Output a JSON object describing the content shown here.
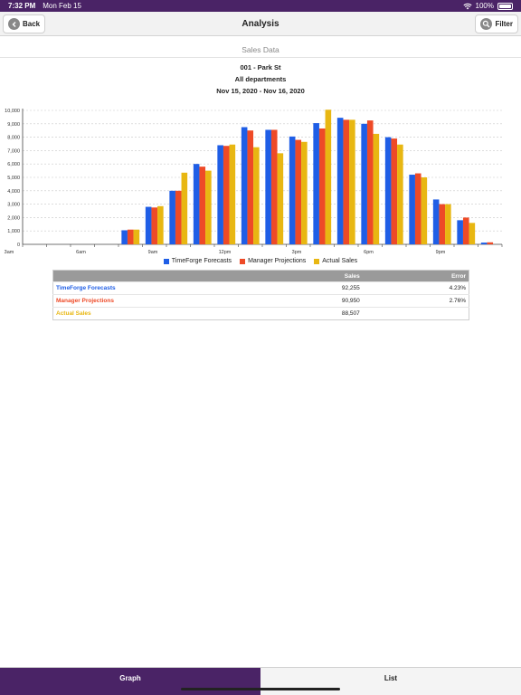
{
  "status": {
    "time": "7:32 PM",
    "date": "Mon Feb 15",
    "battery": "100%"
  },
  "nav": {
    "back_label": "Back",
    "title": "Analysis",
    "filter_label": "Filter"
  },
  "section_title": "Sales Data",
  "info": {
    "store": "001 - Park St",
    "department": "All departments",
    "range": "Nov 15, 2020 - Nov 16, 2020"
  },
  "colors": {
    "forecast": "#1f5ee6",
    "manager": "#ee4a27",
    "actual": "#e8b712",
    "brand": "#4a2366"
  },
  "chart_data": {
    "type": "bar",
    "categories": [
      "3am",
      "4am",
      "5am",
      "6am",
      "7am",
      "8am",
      "9am",
      "10am",
      "11am",
      "12pm",
      "1pm",
      "2pm",
      "3pm",
      "4pm",
      "5pm",
      "6pm",
      "7pm",
      "8pm",
      "9pm",
      "10pm"
    ],
    "x_tick_labels": [
      "3am",
      "6am",
      "9am",
      "12pm",
      "3pm",
      "6pm",
      "9pm"
    ],
    "y_ticks": [
      "0",
      "1,000",
      "2,000",
      "3,000",
      "4,000",
      "5,000",
      "6,000",
      "7,000",
      "8,000",
      "9,000",
      "10,000"
    ],
    "ylim": [
      0,
      10000
    ],
    "grid": true,
    "legend_position": "bottom",
    "series": [
      {
        "name": "TimeForge Forecasts",
        "values": [
          0,
          0,
          0,
          0,
          1050,
          2800,
          4000,
          6000,
          7400,
          8750,
          8550,
          8050,
          9050,
          9450,
          9000,
          8000,
          5200,
          3350,
          1800,
          130
        ]
      },
      {
        "name": "Manager Projections",
        "values": [
          0,
          0,
          0,
          0,
          1100,
          2750,
          4000,
          5800,
          7350,
          8500,
          8550,
          7800,
          8650,
          9300,
          9250,
          7900,
          5300,
          3000,
          2000,
          150
        ]
      },
      {
        "name": "Actual Sales",
        "values": [
          0,
          0,
          0,
          0,
          1100,
          2850,
          5350,
          5500,
          7450,
          7250,
          6800,
          7650,
          10050,
          9300,
          8250,
          7450,
          5000,
          3000,
          1600,
          0
        ]
      }
    ]
  },
  "table": {
    "headers": [
      "",
      "Sales",
      "Error"
    ],
    "rows": [
      {
        "label": "TimeForge Forecasts",
        "sales": "92,255",
        "error": "4.23%"
      },
      {
        "label": "Manager Projections",
        "sales": "90,950",
        "error": "2.76%"
      },
      {
        "label": "Actual Sales",
        "sales": "88,507",
        "error": ""
      }
    ]
  },
  "tabs": {
    "graph": "Graph",
    "list": "List"
  }
}
